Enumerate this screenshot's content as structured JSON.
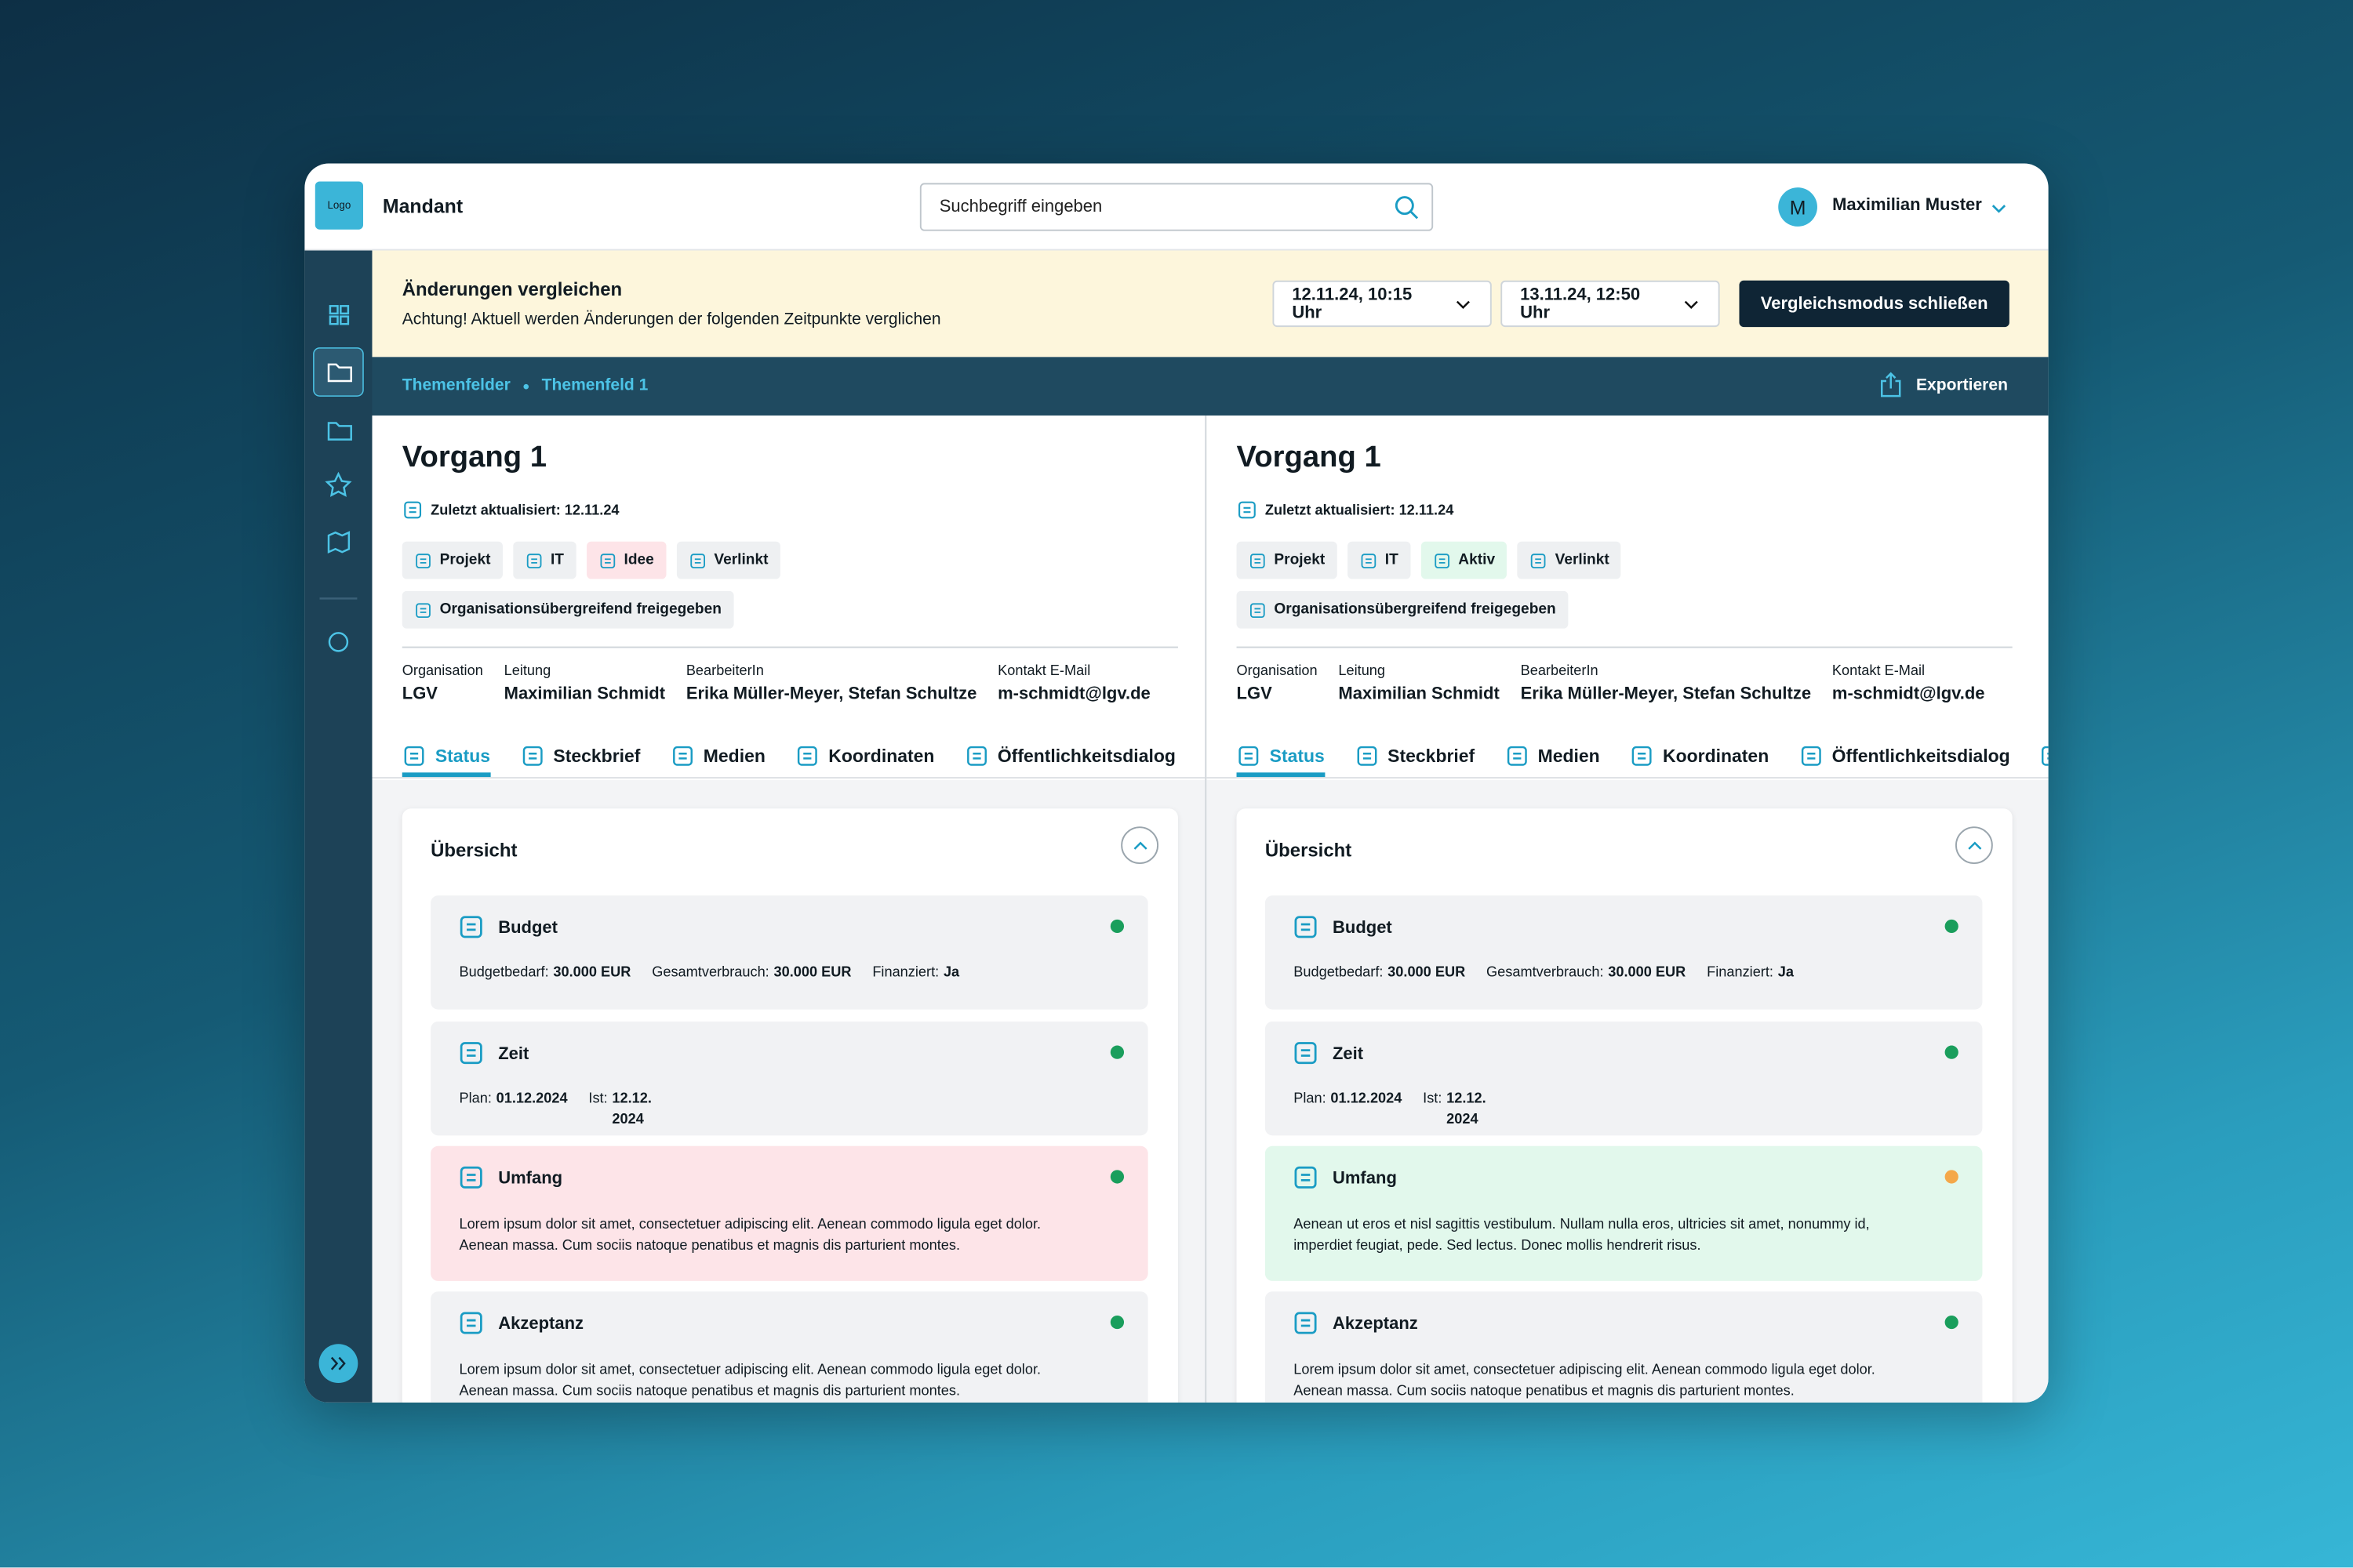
{
  "header": {
    "logo": "Logo",
    "tenant": "Mandant",
    "search_placeholder": "Suchbegriff eingeben",
    "user_initial": "M",
    "user_name": "Maximilian Muster"
  },
  "compare_bar": {
    "title": "Änderungen vergleichen",
    "note": "Achtung! Aktuell werden Änderungen der folgenden Zeitpunkte verglichen",
    "dates": [
      "12.11.24, 10:15 Uhr",
      "13.11.24, 12:50 Uhr"
    ],
    "close_button": "Vergleichsmodus schließen"
  },
  "breadcrumb": [
    "Themenfelder",
    "Themenfeld 1"
  ],
  "export": "Exportieren",
  "panels": [
    {
      "title": "Vorgang 1",
      "updated": "Zuletzt aktualisiert: 12.11.24",
      "tags": [
        {
          "text": "Projekt",
          "color": "#eef0f2"
        },
        {
          "text": "IT",
          "color": "#eef0f2"
        },
        {
          "text": "Idee",
          "color": "#fde4e8"
        },
        {
          "text": "Verlinkt",
          "color": "#eef0f2"
        }
      ],
      "shared": "Organisationsübergreifend freigegeben",
      "info": [
        {
          "label": "Organisation",
          "value": "LGV"
        },
        {
          "label": "Leitung",
          "value": "Maximilian Schmidt"
        },
        {
          "label": "BearbeiterIn",
          "value": "Erika Müller-Meyer, Stefan Schultze"
        },
        {
          "label": "Kontakt E-Mail",
          "value": "m-schmidt@lgv.de"
        }
      ],
      "tabs": [
        "Status",
        "Steckbrief",
        "Medien",
        "Koordinaten",
        "Öffentlichkeitsdialog"
      ],
      "section": "Übersicht",
      "cards": [
        {
          "title": "Budget",
          "color": "#f1f2f4",
          "status_color": "#1a9e5c",
          "fields": [
            {
              "label": "Budgetbedarf:",
              "value": "30.000 EUR"
            },
            {
              "label": "Gesamtverbrauch:",
              "value": "30.000 EUR"
            },
            {
              "label": "Finanziert:",
              "value": "Ja"
            }
          ]
        },
        {
          "title": "Zeit",
          "color": "#f1f2f4",
          "status_color": "#1a9e5c",
          "fields": [
            {
              "label": "Plan:",
              "value": "01.12.2024"
            },
            {
              "label": "Ist:",
              "value": "12.12. 2024"
            }
          ]
        },
        {
          "title": "Umfang",
          "color": "#fde4e8",
          "status_color": "#1a9e5c",
          "text": "Lorem ipsum dolor sit amet, consectetuer adipiscing elit. Aenean commodo ligula eget dolor. Aenean massa. Cum sociis natoque penatibus et magnis dis parturient montes."
        },
        {
          "title": "Akzeptanz",
          "color": "#f1f2f4",
          "status_color": "#1a9e5c",
          "text": "Lorem ipsum dolor sit amet, consectetuer adipiscing elit. Aenean commodo ligula eget dolor. Aenean massa. Cum sociis natoque penatibus et magnis dis parturient montes."
        }
      ]
    },
    {
      "title": "Vorgang 1",
      "updated": "Zuletzt aktualisiert: 12.11.24",
      "tags": [
        {
          "text": "Projekt",
          "color": "#eef0f2"
        },
        {
          "text": "IT",
          "color": "#eef0f2"
        },
        {
          "text": "Aktiv",
          "color": "#e2f8ec"
        },
        {
          "text": "Verlinkt",
          "color": "#eef0f2"
        }
      ],
      "shared": "Organisationsübergreifend freigegeben",
      "info": [
        {
          "label": "Organisation",
          "value": "LGV"
        },
        {
          "label": "Leitung",
          "value": "Maximilian Schmidt"
        },
        {
          "label": "BearbeiterIn",
          "value": "Erika Müller-Meyer, Stefan Schultze"
        },
        {
          "label": "Kontakt E-Mail",
          "value": "m-schmidt@lgv.de"
        }
      ],
      "tabs": [
        "Status",
        "Steckbrief",
        "Medien",
        "Koordinaten",
        "Öffentlichkeitsdialog"
      ],
      "section": "Übersicht",
      "cards": [
        {
          "title": "Budget",
          "color": "#f1f2f4",
          "status_color": "#1a9e5c",
          "fields": [
            {
              "label": "Budgetbedarf:",
              "value": "30.000 EUR"
            },
            {
              "label": "Gesamtverbrauch:",
              "value": "30.000 EUR"
            },
            {
              "label": "Finanziert:",
              "value": "Ja"
            }
          ]
        },
        {
          "title": "Zeit",
          "color": "#f1f2f4",
          "status_color": "#1a9e5c",
          "fields": [
            {
              "label": "Plan:",
              "value": "01.12.2024"
            },
            {
              "label": "Ist:",
              "value": "12.12. 2024"
            }
          ]
        },
        {
          "title": "Umfang",
          "color": "#e2f8ec",
          "status_color": "#f4a84a",
          "text": "Aenean ut eros et nisl sagittis vestibulum. Nullam nulla eros, ultricies sit amet, nonummy id, imperdiet feugiat, pede. Sed lectus. Donec mollis hendrerit risus."
        },
        {
          "title": "Akzeptanz",
          "color": "#f1f2f4",
          "status_color": "#1a9e5c",
          "text": "Lorem ipsum dolor sit amet, consectetuer adipiscing elit. Aenean commodo ligula eget dolor. Aenean massa. Cum sociis natoque penatibus et magnis dis parturient montes."
        }
      ]
    }
  ]
}
